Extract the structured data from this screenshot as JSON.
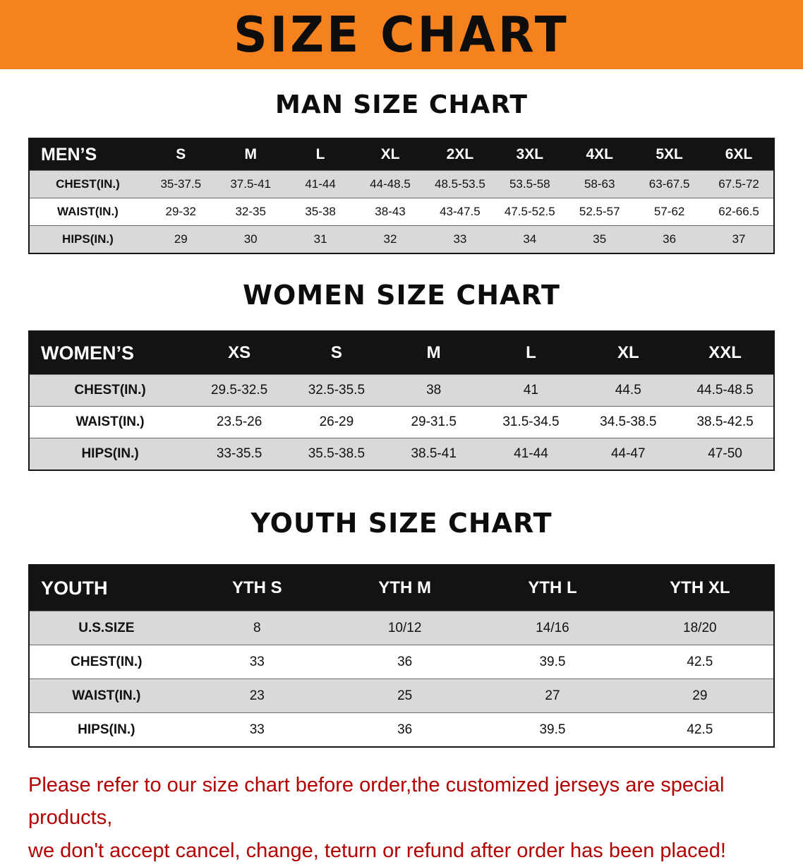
{
  "banner": {
    "title": "SIZE CHART"
  },
  "colors": {
    "banner_orange": "#F5821E",
    "table_header_black": "#131313",
    "row_gray": "#D9D9D9",
    "footer_red": "#B40000"
  },
  "men": {
    "section_title": "MAN SIZE CHART",
    "header": {
      "label": "MEN’S",
      "sizes": [
        "S",
        "M",
        "L",
        "XL",
        "2XL",
        "3XL",
        "4XL",
        "5XL",
        "6XL"
      ]
    },
    "rows": [
      {
        "label": "CHEST(IN.)",
        "values": [
          "35-37.5",
          "37.5-41",
          "41-44",
          "44-48.5",
          "48.5-53.5",
          "53.5-58",
          "58-63",
          "63-67.5",
          "67.5-72"
        ]
      },
      {
        "label": "WAIST(IN.)",
        "values": [
          "29-32",
          "32-35",
          "35-38",
          "38-43",
          "43-47.5",
          "47.5-52.5",
          "52.5-57",
          "57-62",
          "62-66.5"
        ]
      },
      {
        "label": "HIPS(IN.)",
        "values": [
          "29",
          "30",
          "31",
          "32",
          "33",
          "34",
          "35",
          "36",
          "37"
        ]
      }
    ]
  },
  "women": {
    "section_title": "WOMEN SIZE CHART",
    "header": {
      "label": "WOMEN’S",
      "sizes": [
        "XS",
        "S",
        "M",
        "L",
        "XL",
        "XXL"
      ]
    },
    "rows": [
      {
        "label": "CHEST(IN.)",
        "values": [
          "29.5-32.5",
          "32.5-35.5",
          "38",
          "41",
          "44.5",
          "44.5-48.5"
        ]
      },
      {
        "label": "WAIST(IN.)",
        "values": [
          "23.5-26",
          "26-29",
          "29-31.5",
          "31.5-34.5",
          "34.5-38.5",
          "38.5-42.5"
        ]
      },
      {
        "label": "HIPS(IN.)",
        "values": [
          "33-35.5",
          "35.5-38.5",
          "38.5-41",
          "41-44",
          "44-47",
          "47-50"
        ]
      }
    ]
  },
  "youth": {
    "section_title": "YOUTH SIZE CHART",
    "header": {
      "label": "YOUTH",
      "sizes": [
        "YTH S",
        "YTH M",
        "YTH L",
        "YTH XL"
      ]
    },
    "rows": [
      {
        "label": "U.S.SIZE",
        "values": [
          "8",
          "10/12",
          "14/16",
          "18/20"
        ]
      },
      {
        "label": "CHEST(IN.)",
        "values": [
          "33",
          "36",
          "39.5",
          "42.5"
        ]
      },
      {
        "label": "WAIST(IN.)",
        "values": [
          "23",
          "25",
          "27",
          "29"
        ]
      },
      {
        "label": "HIPS(IN.)",
        "values": [
          "33",
          "36",
          "39.5",
          "42.5"
        ]
      }
    ]
  },
  "footer": {
    "line1": "Please refer to our size chart before order,the customized jerseys are special products,",
    "line2": "we don't accept cancel, change, teturn or refund after order has been placed!"
  }
}
